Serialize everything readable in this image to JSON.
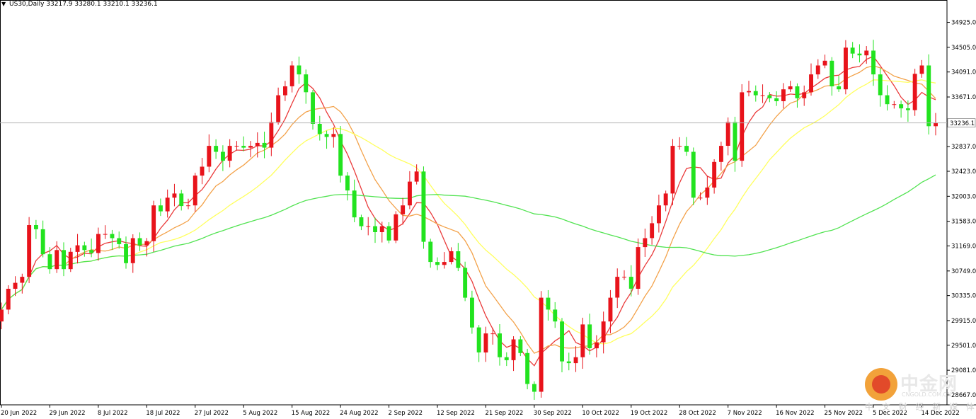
{
  "header": {
    "symbol_tf": "US30,Daily",
    "ohlc": "33217.9 33280.1 33210.1 33236.1"
  },
  "current_price_label": "33236.1",
  "watermark": {
    "title": "中金网",
    "subtitle": "CNGOLD.COM.CN",
    "tagline": "中 文 财 经 新 媒 体"
  },
  "colors": {
    "bull": "#e8131b",
    "bear": "#22e31f",
    "ma_fast": "#ea3a3a",
    "ma_mid": "#f3a24a",
    "ma_slow": "#ffff5e",
    "ma_long": "#52e352",
    "price_line": "#b4b4b4"
  },
  "chart_data": {
    "type": "candlestick",
    "symbol": "US30",
    "timeframe": "Daily",
    "ylim": [
      28500,
      35300
    ],
    "y_ticks": [
      "34925.0",
      "34505.0",
      "34091.0",
      "33671.0",
      "32837.0",
      "32423.0",
      "32003.0",
      "31583.0",
      "31169.0",
      "30749.0",
      "30335.0",
      "29915.0",
      "29501.0",
      "29081.0",
      "28667.0"
    ],
    "x_ticks": [
      {
        "label": "20 Jun 2022",
        "i": 0
      },
      {
        "label": "29 Jun 2022",
        "i": 7
      },
      {
        "label": "8 Jul 2022",
        "i": 14
      },
      {
        "label": "18 Jul 2022",
        "i": 21
      },
      {
        "label": "27 Jul 2022",
        "i": 28
      },
      {
        "label": "5 Aug 2022",
        "i": 35
      },
      {
        "label": "15 Aug 2022",
        "i": 42
      },
      {
        "label": "24 Aug 2022",
        "i": 49
      },
      {
        "label": "2 Sep 2022",
        "i": 56
      },
      {
        "label": "12 Sep 2022",
        "i": 63
      },
      {
        "label": "21 Sep 2022",
        "i": 70
      },
      {
        "label": "30 Sep 2022",
        "i": 77
      },
      {
        "label": "10 Oct 2022",
        "i": 84
      },
      {
        "label": "19 Oct 2022",
        "i": 91
      },
      {
        "label": "28 Oct 2022",
        "i": 98
      },
      {
        "label": "7 Nov 2022",
        "i": 105
      },
      {
        "label": "16 Nov 2022",
        "i": 112
      },
      {
        "label": "25 Nov 2022",
        "i": 119
      },
      {
        "label": "5 Dec 2022",
        "i": 126
      },
      {
        "label": "14 Dec 2022",
        "i": 133
      }
    ],
    "current_price": 33236.1,
    "closes": [
      30100,
      30450,
      30550,
      30650,
      31520,
      31450,
      31030,
      30780,
      31100,
      30780,
      31070,
      31180,
      31100,
      31050,
      31370,
      31370,
      31300,
      31200,
      30880,
      31300,
      31180,
      31250,
      31850,
      31750,
      31980,
      32050,
      31840,
      31850,
      32350,
      32500,
      32850,
      32750,
      32600,
      32850,
      32850,
      32820,
      32850,
      32900,
      32820,
      33250,
      33700,
      33850,
      34200,
      34050,
      33750,
      33220,
      33050,
      33000,
      33050,
      32350,
      32100,
      31650,
      31500,
      31500,
      31400,
      31500,
      31260,
      31700,
      31850,
      32250,
      32420,
      31240,
      30900,
      30850,
      30900,
      31080,
      30800,
      30300,
      29800,
      29380,
      29700,
      29700,
      29300,
      29250,
      29600,
      29370,
      28850,
      28720,
      30300,
      30100,
      29900,
      29230,
      29200,
      29300,
      29850,
      29450,
      29550,
      29900,
      30300,
      30650,
      30650,
      30450,
      31150,
      31300,
      31550,
      31850,
      32050,
      32850,
      32850,
      32750,
      31980,
      31980,
      32150,
      32580,
      32850,
      33250,
      32600,
      33750,
      33770,
      33700,
      33700,
      33650,
      33600,
      33800,
      33850,
      33650,
      33750,
      34050,
      34200,
      34280,
      33850,
      33800,
      34500,
      34400,
      34370,
      34450,
      34050,
      33700,
      33550,
      33550,
      33480,
      33450,
      34060,
      34200,
      33180,
      33236
    ]
  }
}
